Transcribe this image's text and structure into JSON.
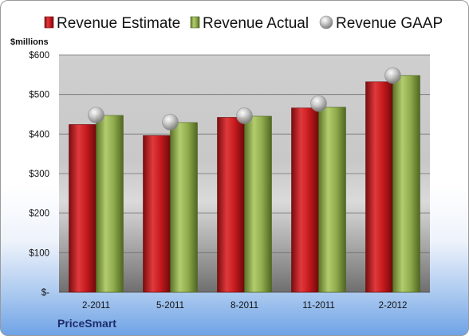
{
  "chart_data": {
    "type": "bar",
    "unit_label": "$millions",
    "brand": "PriceSmart",
    "categories": [
      "2-2011",
      "5-2011",
      "8-2011",
      "11-2011",
      "2-2012"
    ],
    "y_tick_labels": [
      "$-",
      "$100",
      "$200",
      "$300",
      "$400",
      "$500",
      "$600"
    ],
    "ylim": [
      0,
      600
    ],
    "grid": true,
    "legend_position": "top",
    "series": [
      {
        "name": "Revenue Estimate",
        "kind": "bar",
        "color": "#c0181c",
        "values": [
          424,
          396,
          442,
          466,
          532
        ]
      },
      {
        "name": "Revenue Actual",
        "kind": "bar",
        "color": "#8fab4c",
        "values": [
          447,
          429,
          445,
          468,
          548
        ]
      },
      {
        "name": "Revenue GAAP",
        "kind": "marker",
        "color": "#b9b9b9",
        "values": [
          448,
          430,
          446,
          477,
          548
        ]
      }
    ]
  }
}
